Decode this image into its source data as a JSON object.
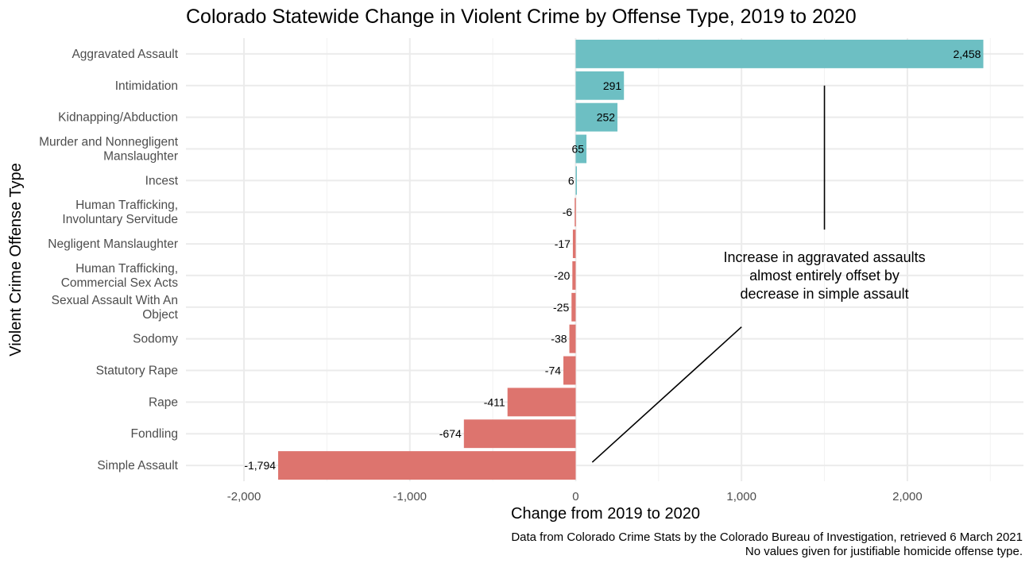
{
  "chart_data": {
    "type": "bar",
    "orientation": "horizontal",
    "title": "Colorado Statewide Change in Violent Crime by Offense Type, 2019 to 2020",
    "xlabel": "Change from 2019 to 2020",
    "ylabel": "Violent Crime Offense Type",
    "xlim": [
      -2350,
      2700
    ],
    "xticks": [
      -2000,
      -1000,
      0,
      1000,
      2000
    ],
    "xtick_labels": [
      "-2,000",
      "-1,000",
      "0",
      "1,000",
      "2,000"
    ],
    "grid": true,
    "colors": {
      "positive": "#6dbfc3",
      "negative": "#dd746e"
    },
    "categories": [
      [
        "Aggravated Assault"
      ],
      [
        "Intimidation"
      ],
      [
        "Kidnapping/Abduction"
      ],
      [
        "Murder and Nonnegligent",
        "Manslaughter"
      ],
      [
        "Incest"
      ],
      [
        "Human Trafficking,",
        "Involuntary Servitude"
      ],
      [
        "Negligent Manslaughter"
      ],
      [
        "Human Trafficking,",
        "Commercial Sex Acts"
      ],
      [
        "Sexual Assault With An",
        "Object"
      ],
      [
        "Sodomy"
      ],
      [
        "Statutory Rape"
      ],
      [
        "Rape"
      ],
      [
        "Fondling"
      ],
      [
        "Simple Assault"
      ]
    ],
    "values": [
      2458,
      291,
      252,
      65,
      6,
      -6,
      -17,
      -20,
      -25,
      -38,
      -74,
      -411,
      -674,
      -1794
    ],
    "value_labels": [
      "2,458",
      "291",
      "252",
      "65",
      "6",
      "-6",
      "-17",
      "-20",
      "-25",
      "-38",
      "-74",
      "-411",
      "-674",
      "-1,794"
    ],
    "annotation": {
      "lines": [
        "Increase in aggravated assaults",
        "almost entirely offset by",
        "decrease in simple assault"
      ],
      "anchor_x": 1500,
      "up_line": {
        "x": 1500,
        "from_category": 1,
        "to_category": 5.5
      },
      "down_line": {
        "from": [
          1000,
          8.5
        ],
        "to": [
          100,
          13
        ]
      }
    },
    "caption": [
      "Data from Colorado Crime Stats by the Colorado Bureau of Investigation, retrieved 6 March 2021",
      "No values given for justifiable homicide offense type."
    ]
  }
}
